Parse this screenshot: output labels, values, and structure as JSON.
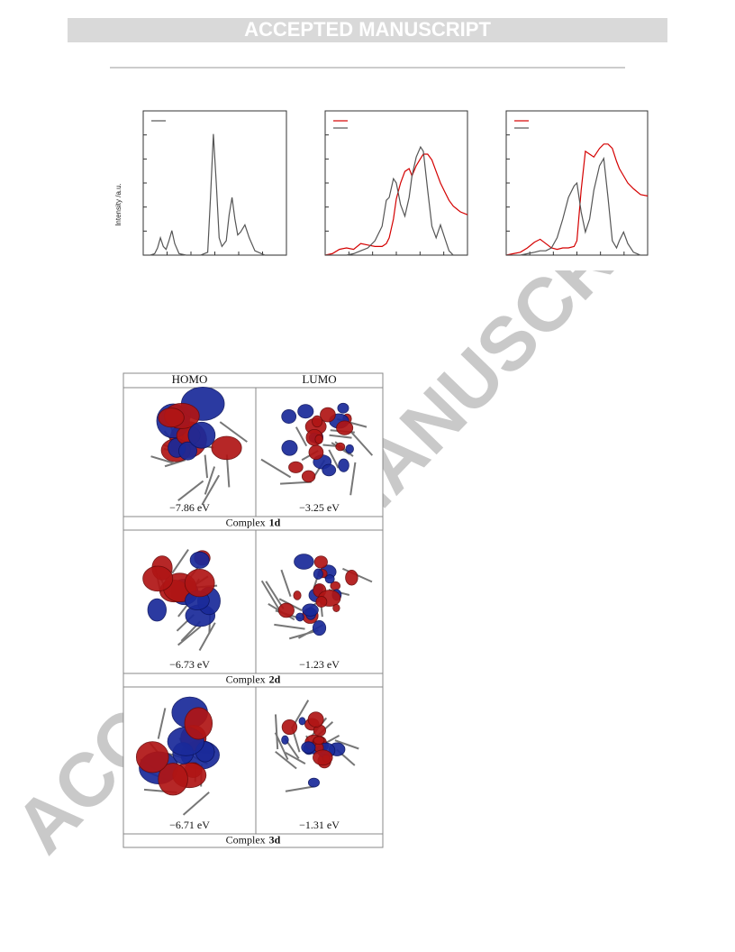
{
  "header": {
    "banner": "ACCEPTED MANUSCRIPT"
  },
  "watermark": "ACCEPTED MANUSCRIPT",
  "chart_data": [
    {
      "type": "line",
      "ylabel": "Intensity /a.u.",
      "legend": "upper left",
      "xlim": [
        0,
        100
      ],
      "ylim": [
        0,
        100
      ],
      "x": [
        0,
        5,
        8,
        10,
        12,
        14,
        16,
        18,
        20,
        22,
        25,
        30,
        40,
        45,
        47,
        49,
        51,
        53,
        55,
        58,
        60,
        62,
        64,
        66,
        68,
        71,
        74,
        78,
        85,
        100
      ],
      "series": [
        {
          "color": "#555555",
          "values": [
            0,
            0,
            1,
            5,
            12,
            6,
            4,
            10,
            17,
            8,
            1,
            0,
            0,
            2,
            40,
            84,
            50,
            12,
            6,
            10,
            28,
            40,
            25,
            14,
            16,
            21,
            12,
            3,
            0,
            0
          ]
        }
      ]
    },
    {
      "type": "line",
      "legend": "upper left",
      "xlim": [
        0,
        100
      ],
      "ylim": [
        0,
        100
      ],
      "x": [
        0,
        5,
        10,
        15,
        20,
        25,
        30,
        35,
        40,
        43,
        45,
        48,
        50,
        53,
        56,
        59,
        61,
        64,
        67,
        69,
        72,
        75,
        78,
        81,
        84,
        87,
        90,
        95,
        100
      ],
      "series": [
        {
          "color": "#d40000",
          "values": [
            0,
            1,
            4,
            5,
            4,
            8,
            7,
            6,
            6,
            8,
            12,
            25,
            39,
            50,
            58,
            60,
            55,
            62,
            67,
            70,
            70,
            66,
            58,
            50,
            44,
            38,
            34,
            30,
            28
          ]
        },
        {
          "color": "#555555",
          "values": [
            0,
            0,
            0,
            0,
            1,
            3,
            5,
            10,
            20,
            38,
            40,
            53,
            50,
            35,
            27,
            40,
            55,
            68,
            75,
            72,
            45,
            20,
            12,
            21,
            12,
            3,
            0,
            0,
            0
          ]
        }
      ]
    },
    {
      "type": "line",
      "legend": "upper left",
      "xlim": [
        0,
        100
      ],
      "ylim": [
        0,
        100
      ],
      "x": [
        0,
        5,
        10,
        15,
        20,
        24,
        28,
        32,
        36,
        40,
        44,
        48,
        50,
        53,
        56,
        59,
        62,
        66,
        69,
        72,
        75,
        78,
        80,
        83,
        86,
        90,
        95,
        100
      ],
      "series": [
        {
          "color": "#d40000",
          "values": [
            0,
            1,
            2,
            5,
            9,
            11,
            8,
            5,
            4,
            5,
            5,
            6,
            10,
            45,
            72,
            70,
            68,
            74,
            77,
            77,
            74,
            65,
            60,
            55,
            50,
            46,
            42,
            41
          ]
        },
        {
          "color": "#555555",
          "values": [
            0,
            0,
            0,
            1,
            2,
            3,
            3,
            5,
            12,
            25,
            40,
            48,
            50,
            30,
            16,
            25,
            45,
            62,
            67,
            40,
            10,
            5,
            10,
            16,
            8,
            2,
            0,
            0
          ]
        }
      ]
    }
  ],
  "table": {
    "columns": [
      "HOMO",
      "LUMO"
    ],
    "rows": [
      {
        "homo_energy": "−7.86 eV",
        "lumo_energy": "−3.25 eV",
        "label": "Complex",
        "id": "1d"
      },
      {
        "homo_energy": "−6.73 eV",
        "lumo_energy": "−1.23 eV",
        "label": "Complex",
        "id": "2d"
      },
      {
        "homo_energy": "−6.71 eV",
        "lumo_energy": "−1.31 eV",
        "label": "Complex",
        "id": "3d"
      }
    ]
  }
}
